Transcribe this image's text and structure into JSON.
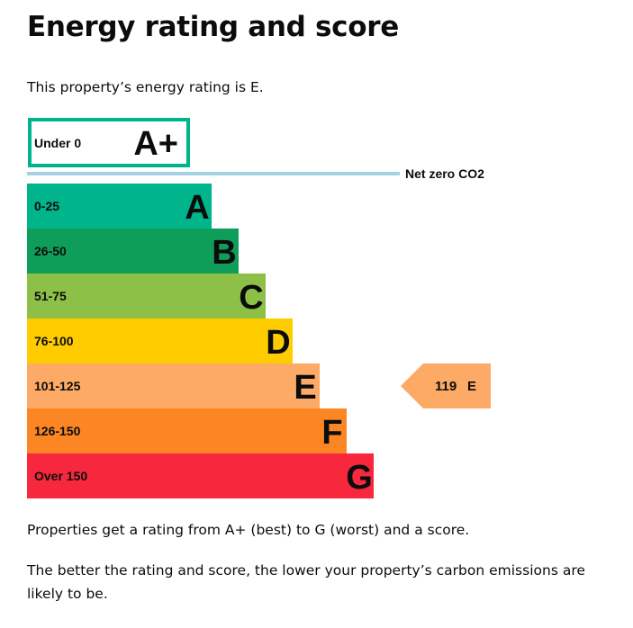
{
  "title": "Energy rating and score",
  "intro": "This property’s energy rating is E.",
  "paragraph_1": "Properties get a rating from A+ (best) to G (worst) and a score.",
  "paragraph_2": "The better the rating and score, the lower your property’s carbon emissions are likely to be.",
  "chart_data": {
    "type": "bar",
    "net_zero_label": "Net zero CO2",
    "top_band": {
      "letter": "A+",
      "range": "Under 0",
      "color": "#00b48b"
    },
    "bands": [
      {
        "letter": "A",
        "range": "0-25",
        "color": "#00b48b"
      },
      {
        "letter": "B",
        "range": "26-50",
        "color": "#0f9e5a"
      },
      {
        "letter": "C",
        "range": "51-75",
        "color": "#8dc047"
      },
      {
        "letter": "D",
        "range": "76-100",
        "color": "#ffcc00"
      },
      {
        "letter": "E",
        "range": "101-125",
        "color": "#fcaa65"
      },
      {
        "letter": "F",
        "range": "126-150",
        "color": "#fc8524"
      },
      {
        "letter": "G",
        "range": "Over 150",
        "color": "#f7273d"
      }
    ],
    "current": {
      "score": "119",
      "letter": "E",
      "band": "E",
      "color": "#fcaa65"
    },
    "net_zero_line_color": "#a5d2e2"
  }
}
